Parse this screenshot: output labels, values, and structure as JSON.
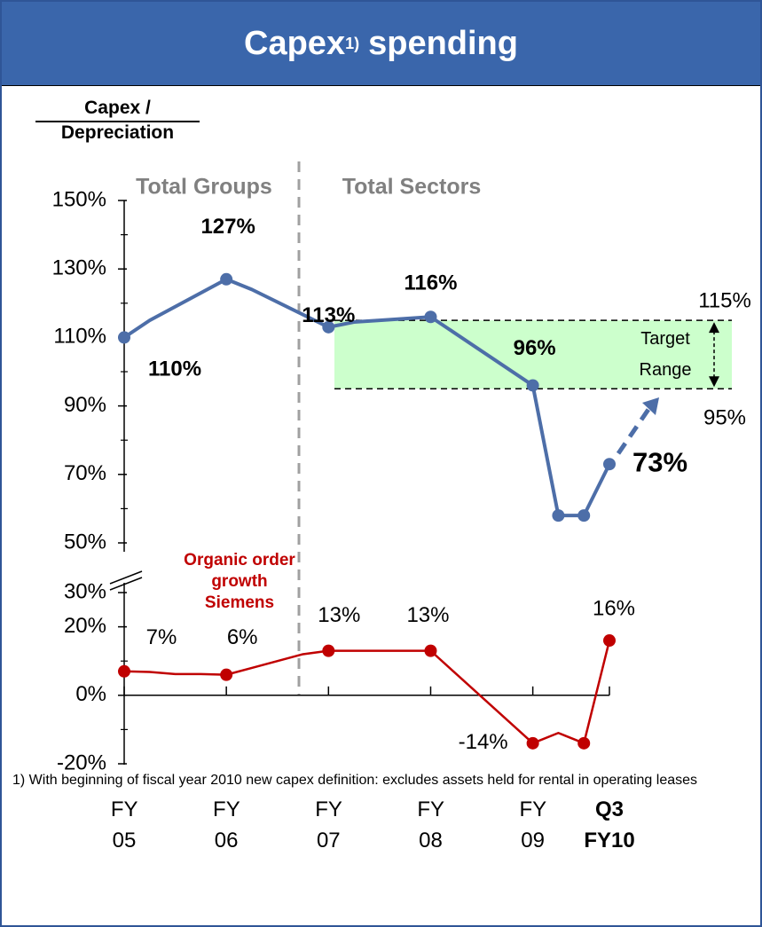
{
  "header": {
    "title": "Capex",
    "title_note": "1)",
    "title_suffix": "spending"
  },
  "chart_data": [
    {
      "type": "line",
      "ylabel": [
        "Capex /",
        "Depreciation"
      ],
      "annotations": [
        "Total Groups",
        "Total Sectors"
      ],
      "xlim": [
        0,
        19
      ],
      "ylim": [
        50,
        150
      ],
      "yticks": [
        {
          "value": 150,
          "label": "150%"
        },
        {
          "value": 130,
          "label": "130%"
        },
        {
          "value": 110,
          "label": "110%"
        },
        {
          "value": 90,
          "label": "90%"
        },
        {
          "value": 70,
          "label": "70%"
        },
        {
          "value": 50,
          "label": "50%"
        }
      ],
      "minor_yticks": [
        140,
        120,
        100,
        80,
        60
      ],
      "target_range": {
        "range": [
          95,
          115
        ],
        "labels": [
          "95%",
          "115%"
        ],
        "name": "Target Range"
      },
      "series": [
        {
          "name": "Capex / Depreciation",
          "color": "#4d6ea8",
          "x": [
            0,
            1,
            4,
            5,
            8,
            9,
            10,
            12,
            16,
            17,
            18,
            19
          ],
          "values": [
            110,
            115,
            127,
            124,
            113,
            114.5,
            115,
            116,
            96,
            58,
            58,
            73
          ],
          "value_labels": [
            "110%",
            null,
            "127%",
            null,
            "113%",
            null,
            null,
            "116%",
            "96%",
            null,
            null,
            "73%"
          ],
          "markers": [
            0,
            4,
            8,
            12,
            16,
            17,
            18,
            19
          ]
        }
      ]
    },
    {
      "type": "line",
      "annotations": [
        "Organic order growth Siemens"
      ],
      "xlim": [
        0,
        19
      ],
      "ylim": [
        -20,
        30
      ],
      "yticks": [
        {
          "value": 30,
          "label": "30%"
        },
        {
          "value": 20,
          "label": "20%"
        },
        {
          "value": 0,
          "label": "0%"
        },
        {
          "value": -20,
          "label": "-20%"
        }
      ],
      "minor_yticks": [
        10,
        -10
      ],
      "xticks": [
        {
          "value": 0,
          "label": "FY 05"
        },
        {
          "value": 4,
          "label": "FY 06"
        },
        {
          "value": 8,
          "label": "FY 07"
        },
        {
          "value": 12,
          "label": "FY 08"
        },
        {
          "value": 16,
          "label": "FY 09"
        },
        {
          "value": 19,
          "label": "Q3 FY10"
        }
      ],
      "series": [
        {
          "name": "Organic order growth Siemens",
          "color": "#c00000",
          "x": [
            0,
            1,
            2,
            3,
            4,
            5,
            6,
            7,
            8,
            12,
            16,
            17,
            18,
            19
          ],
          "values": [
            7,
            6.8,
            6.2,
            6.2,
            6,
            8,
            10,
            12,
            13,
            13,
            -14,
            -11,
            -14,
            16
          ],
          "value_labels": [
            "7%",
            null,
            null,
            null,
            "6%",
            null,
            null,
            null,
            "13%",
            "13%",
            "-14%",
            null,
            null,
            "16%"
          ],
          "markers": [
            0,
            4,
            8,
            12,
            16,
            18,
            19
          ]
        }
      ]
    }
  ],
  "footnote": "1)  With beginning of fiscal year 2010 new capex definition: excludes assets held for rental in operating leases"
}
